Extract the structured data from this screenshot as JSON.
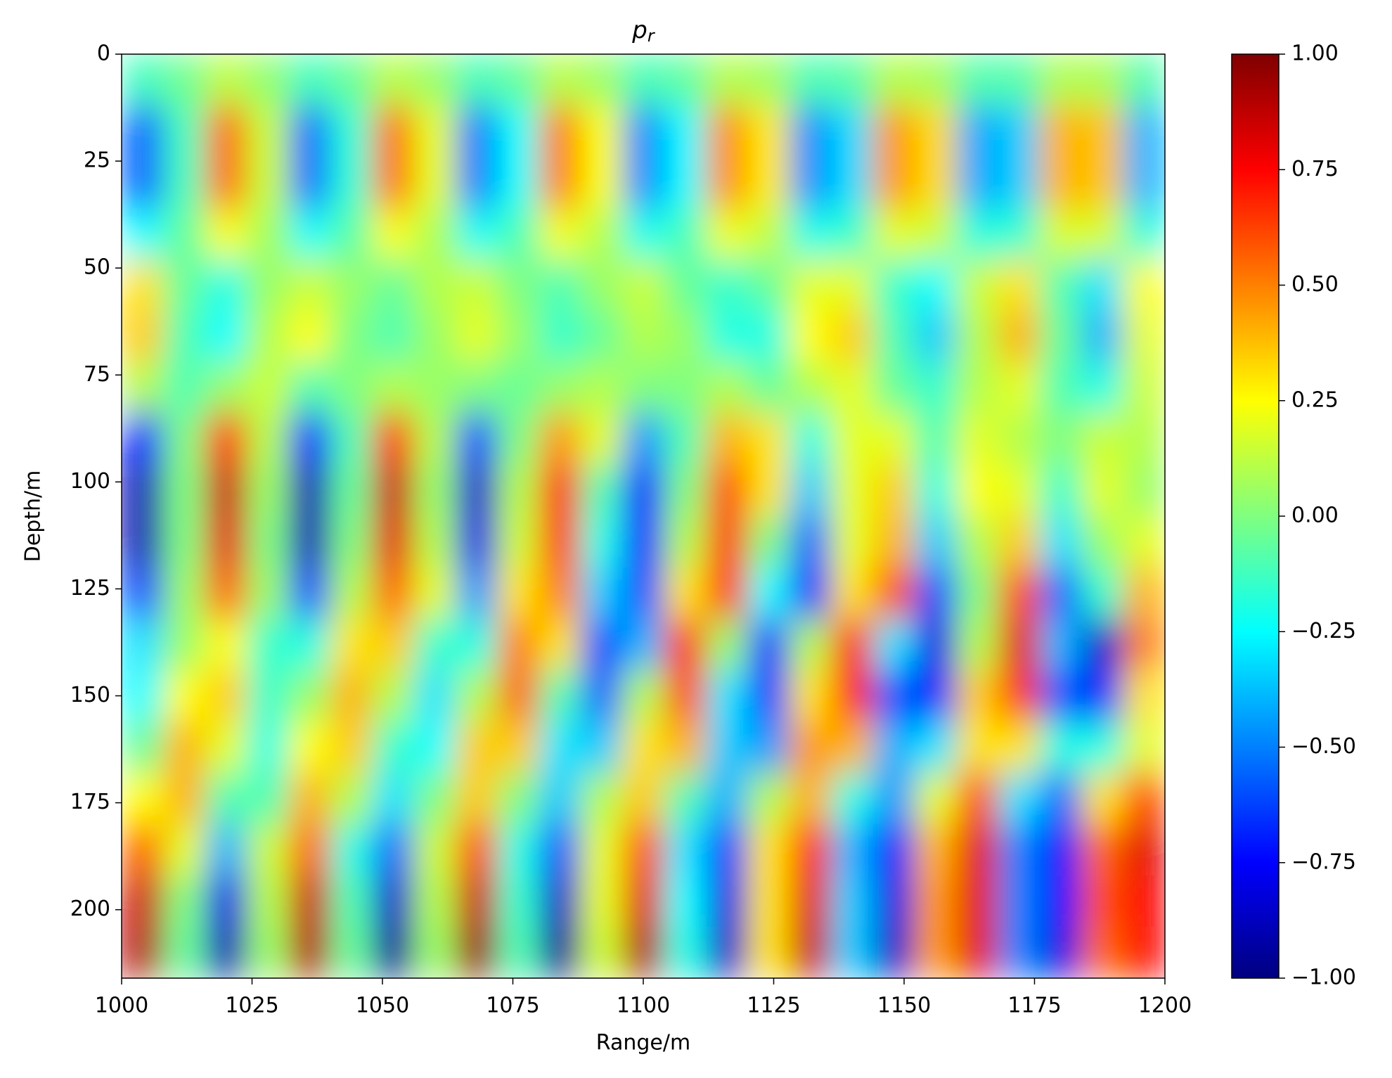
{
  "chart_data": {
    "type": "heatmap",
    "title": {
      "text": "p",
      "subscript": "r"
    },
    "xlabel": "Range/m",
    "ylabel": "Depth/m",
    "colormap": "jet",
    "y_inverted": true,
    "xlim": [
      1000,
      1200
    ],
    "ylim": [
      0,
      216
    ],
    "xticks": [
      1000,
      1025,
      1050,
      1075,
      1100,
      1125,
      1150,
      1175,
      1200
    ],
    "yticks": [
      0,
      25,
      50,
      75,
      100,
      125,
      150,
      175,
      200
    ],
    "clim": [
      -1,
      1
    ],
    "cticks": [
      {
        "value": 1,
        "label": "1.00"
      },
      {
        "value": 0.75,
        "label": "0.75"
      },
      {
        "value": 0.5,
        "label": "0.50"
      },
      {
        "value": 0.25,
        "label": "0.25"
      },
      {
        "value": 0,
        "label": "0.00"
      },
      {
        "value": -0.25,
        "label": "−0.25"
      },
      {
        "value": -0.5,
        "label": "−0.50"
      },
      {
        "value": -0.75,
        "label": "−0.75"
      },
      {
        "value": -1,
        "label": "−1.00"
      }
    ],
    "xbins": [
      1000,
      1008,
      1016,
      1024,
      1032,
      1040,
      1048,
      1056,
      1064,
      1072,
      1080,
      1088,
      1096,
      1104,
      1112,
      1120,
      1128,
      1136,
      1144,
      1152,
      1160,
      1168,
      1176,
      1184,
      1192,
      1200
    ],
    "ybins": [
      0,
      12,
      24,
      36,
      48,
      60,
      72,
      84,
      96,
      108,
      120,
      132,
      144,
      156,
      168,
      180,
      192,
      204,
      216
    ],
    "z": [
      [
        -0.12,
        -0.03,
        0.12,
        0.03,
        -0.12,
        -0.04,
        0.11,
        0.04,
        -0.11,
        -0.05,
        0.11,
        0.05,
        -0.11,
        -0.06,
        0.1,
        0.06,
        -0.1,
        -0.07,
        0.1,
        0.07,
        -0.09,
        -0.08,
        0.09,
        0.08,
        -0.09
      ],
      [
        -0.55,
        -0.12,
        0.53,
        0.14,
        -0.53,
        -0.17,
        0.52,
        0.2,
        -0.51,
        -0.24,
        0.5,
        0.24,
        -0.48,
        -0.26,
        0.47,
        0.29,
        -0.47,
        -0.32,
        0.45,
        0.32,
        -0.42,
        -0.35,
        0.4,
        0.37,
        -0.4
      ],
      [
        -0.55,
        -0.12,
        0.53,
        0.14,
        -0.53,
        -0.17,
        0.52,
        0.2,
        -0.51,
        -0.24,
        0.5,
        0.24,
        -0.48,
        -0.26,
        0.47,
        0.29,
        -0.47,
        -0.32,
        0.45,
        0.32,
        -0.42,
        -0.35,
        0.4,
        0.37,
        -0.4
      ],
      [
        -0.25,
        -0.06,
        0.24,
        0.07,
        -0.24,
        -0.08,
        0.24,
        0.09,
        -0.23,
        -0.11,
        0.23,
        0.11,
        -0.22,
        -0.12,
        0.22,
        0.13,
        -0.21,
        -0.15,
        0.2,
        0.15,
        -0.19,
        -0.16,
        0.18,
        0.17,
        -0.18
      ],
      [
        0.3,
        -0.05,
        -0.2,
        0.05,
        0.15,
        0.05,
        -0.05,
        0.1,
        0.15,
        0.0,
        -0.1,
        0.05,
        0.15,
        -0.05,
        -0.15,
        -0.05,
        0.2,
        0.2,
        -0.15,
        -0.25,
        0.15,
        0.3,
        -0.1,
        -0.3,
        0.25
      ],
      [
        0.35,
        -0.1,
        -0.25,
        0.1,
        0.25,
        0.0,
        -0.1,
        0.05,
        0.2,
        0.05,
        -0.15,
        -0.05,
        0.1,
        0.05,
        -0.2,
        -0.2,
        0.25,
        0.35,
        -0.1,
        -0.35,
        0.1,
        0.4,
        -0.05,
        -0.4,
        0.2
      ],
      [
        0.1,
        -0.1,
        0.05,
        0.15,
        -0.1,
        0.0,
        0.1,
        0.05,
        0.0,
        -0.05,
        0.05,
        0.1,
        0.0,
        0.0,
        0.1,
        -0.05,
        0.1,
        0.2,
        -0.05,
        -0.15,
        0.1,
        0.2,
        -0.1,
        -0.2,
        0.15
      ],
      [
        -0.7,
        0.0,
        0.65,
        0.1,
        -0.7,
        -0.1,
        0.65,
        0.1,
        -0.6,
        0.0,
        0.45,
        0.2,
        -0.45,
        -0.1,
        0.4,
        0.3,
        -0.2,
        0.2,
        0.2,
        -0.1,
        0.2,
        0.1,
        0.0,
        0.15,
        0.1
      ],
      [
        -0.9,
        0.0,
        0.85,
        0.05,
        -0.9,
        -0.05,
        0.85,
        0.05,
        -0.85,
        0.1,
        0.7,
        -0.1,
        -0.75,
        0.0,
        0.6,
        0.3,
        -0.35,
        0.2,
        0.35,
        -0.2,
        0.25,
        0.2,
        -0.15,
        0.2,
        0.05
      ],
      [
        -0.9,
        0.0,
        0.8,
        0.0,
        -0.9,
        0.0,
        0.8,
        0.1,
        -0.8,
        0.15,
        0.65,
        -0.2,
        -0.75,
        0.1,
        0.65,
        0.0,
        -0.55,
        0.2,
        0.4,
        -0.35,
        0.1,
        0.35,
        -0.3,
        0.05,
        0.2
      ],
      [
        -0.6,
        0.05,
        0.55,
        0.05,
        -0.6,
        0.1,
        0.55,
        0.2,
        -0.45,
        0.3,
        0.5,
        -0.35,
        -0.6,
        0.3,
        0.65,
        -0.25,
        -0.7,
        0.3,
        0.6,
        -0.6,
        0.0,
        0.6,
        -0.55,
        -0.15,
        0.4
      ],
      [
        -0.3,
        0.05,
        0.25,
        -0.15,
        -0.2,
        0.3,
        0.35,
        -0.15,
        -0.2,
        0.5,
        0.3,
        -0.6,
        -0.4,
        0.65,
        0.05,
        -0.65,
        0.1,
        0.75,
        -0.3,
        -0.8,
        0.1,
        0.8,
        -0.4,
        -0.85,
        0.5
      ],
      [
        -0.25,
        0.25,
        0.35,
        -0.15,
        0.05,
        0.4,
        0.1,
        -0.3,
        0.1,
        0.55,
        -0.1,
        -0.55,
        0.1,
        0.6,
        -0.3,
        -0.65,
        0.3,
        0.7,
        -0.6,
        -0.7,
        0.35,
        0.65,
        -0.6,
        -0.7,
        0.3
      ],
      [
        -0.05,
        0.4,
        0.2,
        -0.2,
        0.25,
        0.35,
        -0.15,
        -0.25,
        0.35,
        0.35,
        -0.3,
        -0.35,
        0.3,
        0.4,
        -0.35,
        -0.45,
        0.45,
        0.4,
        -0.4,
        -0.3,
        0.3,
        0.3,
        -0.2,
        -0.2,
        0.2
      ],
      [
        0.25,
        0.4,
        -0.1,
        -0.1,
        0.4,
        0.1,
        -0.3,
        0.0,
        0.35,
        0.0,
        -0.35,
        0.1,
        0.35,
        -0.1,
        -0.4,
        0.1,
        0.4,
        -0.2,
        -0.45,
        0.2,
        0.6,
        -0.3,
        -0.55,
        0.3,
        0.6
      ],
      [
        0.55,
        0.2,
        -0.4,
        0.15,
        0.55,
        -0.2,
        -0.55,
        0.15,
        0.6,
        -0.2,
        -0.6,
        0.2,
        0.6,
        -0.3,
        -0.65,
        0.3,
        0.7,
        -0.4,
        -0.75,
        0.4,
        0.8,
        -0.5,
        -0.75,
        0.55,
        0.8
      ],
      [
        0.85,
        0.0,
        -0.8,
        0.1,
        0.85,
        -0.1,
        -0.85,
        0.1,
        0.85,
        -0.15,
        -0.85,
        0.2,
        0.8,
        -0.25,
        -0.8,
        0.3,
        0.8,
        -0.35,
        -0.8,
        0.45,
        0.8,
        -0.5,
        -0.75,
        0.6,
        0.75
      ],
      [
        0.9,
        -0.05,
        -0.9,
        0.05,
        0.9,
        -0.05,
        -0.95,
        0.05,
        0.95,
        -0.1,
        -0.95,
        0.15,
        0.9,
        -0.2,
        -0.85,
        0.3,
        0.85,
        -0.35,
        -0.85,
        0.45,
        0.8,
        -0.5,
        -0.8,
        0.55,
        0.75
      ]
    ]
  }
}
